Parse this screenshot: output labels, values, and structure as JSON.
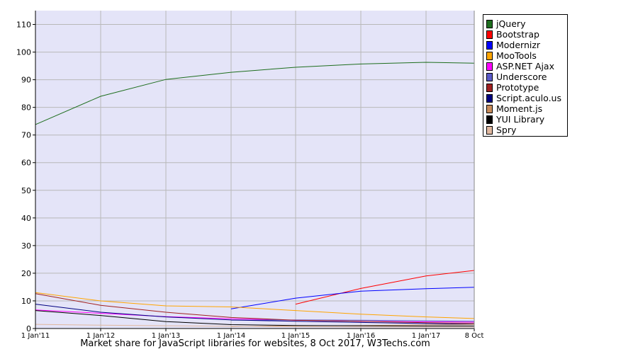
{
  "chart_data": {
    "type": "line",
    "x": [
      "1 Jan'11",
      "1 Jan'12",
      "1 Jan'13",
      "1 Jan'14",
      "1 Jan'15",
      "1 Jan'16",
      "1 Jan'17",
      "8 Oct"
    ],
    "ylim": [
      0,
      115
    ],
    "yticks": [
      0,
      10,
      20,
      30,
      40,
      50,
      60,
      70,
      80,
      90,
      100,
      110
    ],
    "grid": true,
    "legend_position": "top-right",
    "caption": "Market share for JavaScript libraries for websites, 8 Oct 2017, W3Techs.com",
    "series": [
      {
        "name": "jQuery",
        "color": "#1e6e1e",
        "values": [
          73.8,
          84.0,
          90.1,
          92.7,
          94.5,
          95.7,
          96.3,
          96.0
        ]
      },
      {
        "name": "Bootstrap",
        "color": "#ff0000",
        "values": [
          null,
          null,
          null,
          null,
          8.8,
          14.5,
          19.0,
          21.0
        ]
      },
      {
        "name": "Modernizr",
        "color": "#0000ff",
        "values": [
          null,
          null,
          null,
          7.1,
          11.0,
          13.5,
          14.4,
          14.9
        ]
      },
      {
        "name": "MooTools",
        "color": "#ffa500",
        "values": [
          13.0,
          10.0,
          8.2,
          7.8,
          6.5,
          5.2,
          4.2,
          3.6
        ]
      },
      {
        "name": "ASP.NET Ajax",
        "color": "#ff00ff",
        "values": [
          6.7,
          5.5,
          4.3,
          3.5,
          3.0,
          2.6,
          2.4,
          2.3
        ]
      },
      {
        "name": "Underscore",
        "color": "#5a5ac8",
        "values": [
          null,
          null,
          null,
          3.0,
          3.1,
          3.0,
          2.8,
          2.6
        ]
      },
      {
        "name": "Prototype",
        "color": "#a02020",
        "values": [
          12.6,
          8.4,
          5.9,
          4.0,
          3.0,
          2.6,
          2.1,
          1.9
        ]
      },
      {
        "name": "Script.aculo.us",
        "color": "#000080",
        "values": [
          8.8,
          5.9,
          4.2,
          3.1,
          2.6,
          2.2,
          1.8,
          1.5
        ]
      },
      {
        "name": "Moment.js",
        "color": "#c88c5a",
        "values": [
          null,
          null,
          null,
          0.7,
          1.0,
          1.1,
          1.3,
          1.4
        ]
      },
      {
        "name": "YUI Library",
        "color": "#000000",
        "values": [
          6.5,
          4.7,
          2.5,
          1.4,
          1.1,
          1.0,
          0.9,
          0.9
        ]
      },
      {
        "name": "Spry",
        "color": "#e0b8a0",
        "values": [
          1.5,
          1.2,
          1.0,
          0.8,
          0.7,
          0.6,
          0.5,
          0.5
        ]
      }
    ]
  }
}
